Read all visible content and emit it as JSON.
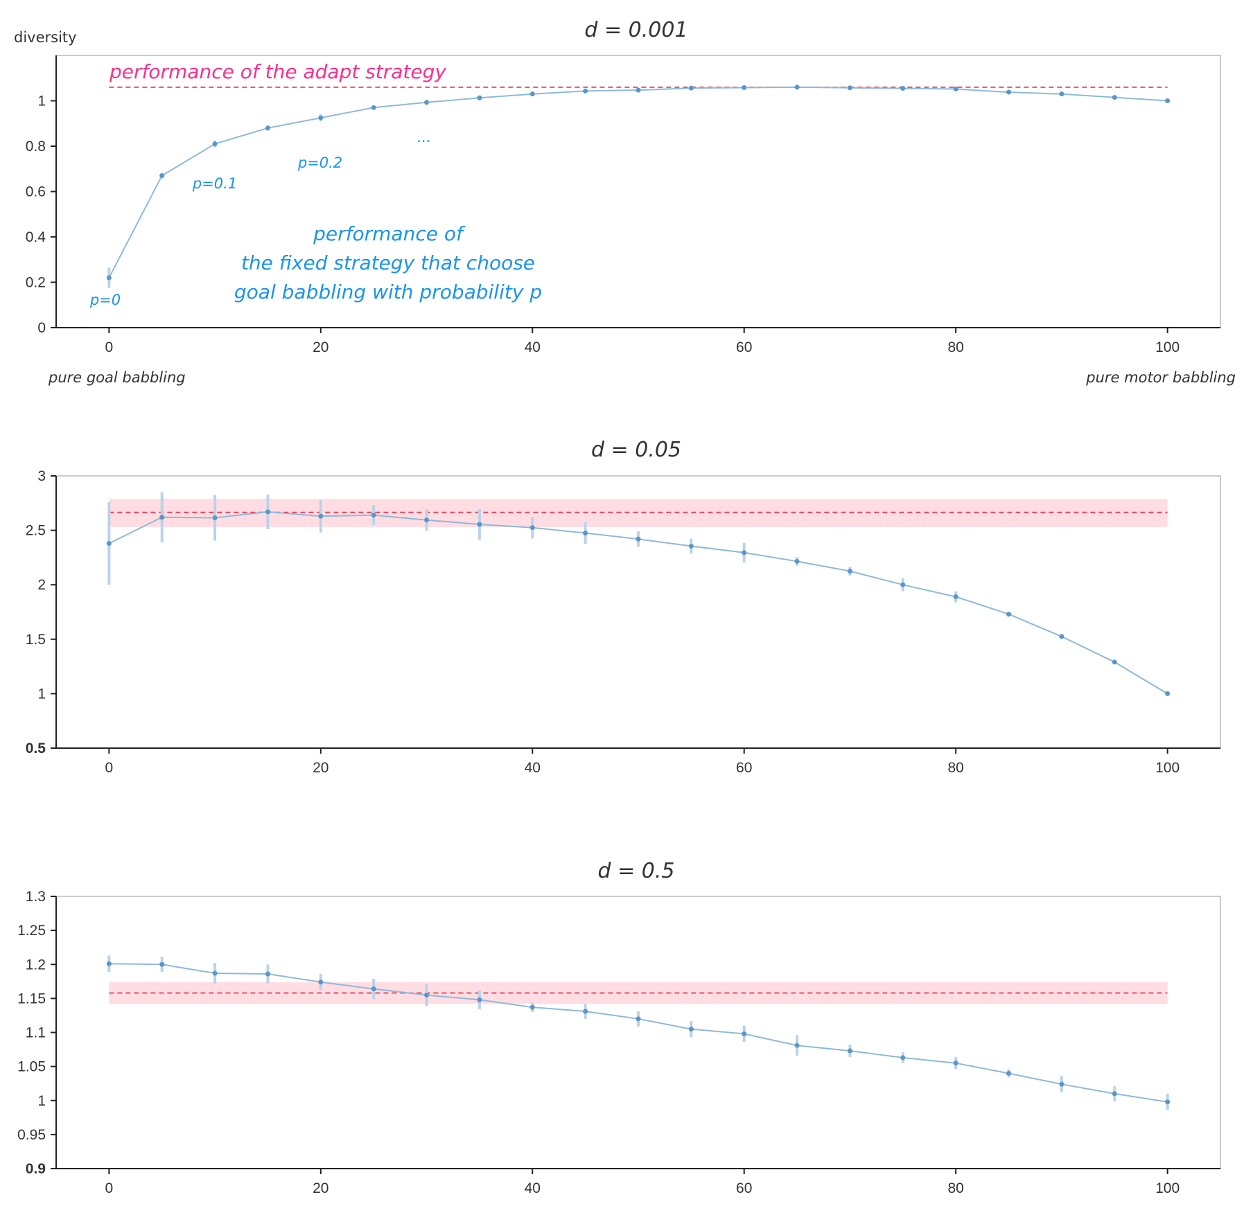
{
  "colors": {
    "series": "#8fb9d9",
    "series_dot": "#5b96c8",
    "errorbar": "#b9d3ea",
    "reference": "#e8334f",
    "band": "#ffdde3",
    "annotation_pink": "#ff2d8a",
    "annotation_blue": "#1a94ec",
    "frame": "#bbbbbb",
    "axis": "#222222"
  },
  "chart_data": [
    {
      "type": "line",
      "title": "d = 0.001",
      "ylabel": "diversity",
      "xlabel": "",
      "xlim": [
        -5,
        105
      ],
      "ylim": [
        0,
        1.2
      ],
      "xticks": [
        0,
        20,
        40,
        60,
        80,
        100
      ],
      "xtick_labels": [
        "0",
        "20",
        "40",
        "60",
        "80",
        "100"
      ],
      "yticks": [
        0,
        0.2,
        0.4,
        0.6,
        0.8,
        1
      ],
      "ytick_labels": [
        "0",
        "0.2",
        "0.4",
        "0.6",
        "0.8",
        "1"
      ],
      "bold_ytick_labels": [],
      "x": [
        0,
        5,
        10,
        15,
        20,
        25,
        30,
        35,
        40,
        45,
        50,
        55,
        60,
        65,
        70,
        75,
        80,
        85,
        90,
        95,
        100
      ],
      "series": [
        {
          "name": "fixed strategy",
          "values": [
            0.22,
            0.67,
            0.81,
            0.88,
            0.925,
            0.97,
            0.993,
            1.013,
            1.03,
            1.043,
            1.047,
            1.056,
            1.058,
            1.06,
            1.057,
            1.055,
            1.052,
            1.038,
            1.03,
            1.015,
            1.0
          ],
          "errors": [
            0.045,
            0.012,
            0.015,
            0.012,
            0.015,
            0.008,
            0.01,
            0.01,
            0.01,
            0.006,
            0.006,
            0.008,
            0.006,
            0.005,
            0.005,
            0.005,
            0.005,
            0.005,
            0.005,
            0.004,
            0.003
          ]
        }
      ],
      "reference": {
        "name": "adapt strategy",
        "value": 1.06,
        "band": [
          1.06,
          1.06
        ]
      },
      "annotations": {
        "adapt": "performance of the adapt strategy",
        "fixed_line1": "performance of",
        "fixed_line2": "the fixed strategy that choose",
        "fixed_line3": "goal babbling with probability p",
        "p0": "p=0",
        "p01": "p=0.1",
        "p02": "p=0.2",
        "ellipsis": "...",
        "left_end": "pure goal babbling",
        "right_end": "pure motor babbling"
      }
    },
    {
      "type": "line",
      "title": "d = 0.05",
      "ylabel": "",
      "xlabel": "",
      "xlim": [
        -5,
        105
      ],
      "ylim": [
        0.5,
        3
      ],
      "xticks": [
        0,
        20,
        40,
        60,
        80,
        100
      ],
      "xtick_labels": [
        "0",
        "20",
        "40",
        "60",
        "80",
        "100"
      ],
      "yticks": [
        0.5,
        1,
        1.5,
        2,
        2.5,
        3
      ],
      "ytick_labels": [
        "0.5",
        "1",
        "1.5",
        "2",
        "2.5",
        "3"
      ],
      "bold_ytick_labels": [
        "0.5"
      ],
      "x": [
        0,
        5,
        10,
        15,
        20,
        25,
        30,
        35,
        40,
        45,
        50,
        55,
        60,
        65,
        70,
        75,
        80,
        85,
        90,
        95,
        100
      ],
      "series": [
        {
          "name": "fixed strategy",
          "values": [
            2.38,
            2.62,
            2.615,
            2.67,
            2.63,
            2.64,
            2.595,
            2.555,
            2.525,
            2.475,
            2.42,
            2.355,
            2.295,
            2.215,
            2.125,
            2.0,
            1.89,
            1.73,
            1.525,
            1.29,
            1.0
          ],
          "errors": [
            0.38,
            0.23,
            0.21,
            0.16,
            0.15,
            0.09,
            0.1,
            0.14,
            0.1,
            0.1,
            0.07,
            0.07,
            0.09,
            0.04,
            0.04,
            0.06,
            0.05,
            0.02,
            0.02,
            0.015,
            0.01
          ]
        }
      ],
      "reference": {
        "name": "adapt strategy",
        "value": 2.665,
        "band": [
          2.53,
          2.79
        ]
      }
    },
    {
      "type": "line",
      "title": "d = 0.5",
      "ylabel": "",
      "xlabel": "",
      "xlim": [
        -5,
        105
      ],
      "ylim": [
        0.9,
        1.3
      ],
      "xticks": [
        0,
        20,
        40,
        60,
        80,
        100
      ],
      "xtick_labels": [
        "0",
        "20",
        "40",
        "60",
        "80",
        "100"
      ],
      "yticks": [
        0.9,
        0.95,
        1,
        1.05,
        1.1,
        1.15,
        1.2,
        1.25,
        1.3
      ],
      "ytick_labels": [
        "0.9",
        "0.95",
        "1",
        "1.05",
        "1.1",
        "1.15",
        "1.2",
        "1.25",
        "1.3"
      ],
      "bold_ytick_labels": [
        "0.9"
      ],
      "x": [
        0,
        5,
        10,
        15,
        20,
        25,
        30,
        35,
        40,
        45,
        50,
        55,
        60,
        65,
        70,
        75,
        80,
        85,
        90,
        95,
        100
      ],
      "series": [
        {
          "name": "fixed strategy",
          "values": [
            1.201,
            1.2,
            1.187,
            1.186,
            1.174,
            1.164,
            1.155,
            1.148,
            1.137,
            1.131,
            1.12,
            1.105,
            1.098,
            1.081,
            1.073,
            1.063,
            1.055,
            1.04,
            1.024,
            1.01,
            0.998
          ],
          "errors": [
            0.012,
            0.011,
            0.015,
            0.014,
            0.012,
            0.015,
            0.016,
            0.014,
            0.007,
            0.011,
            0.011,
            0.012,
            0.012,
            0.015,
            0.009,
            0.008,
            0.009,
            0.006,
            0.012,
            0.011,
            0.012
          ]
        }
      ],
      "reference": {
        "name": "adapt strategy",
        "value": 1.158,
        "band": [
          1.142,
          1.174
        ]
      }
    }
  ]
}
